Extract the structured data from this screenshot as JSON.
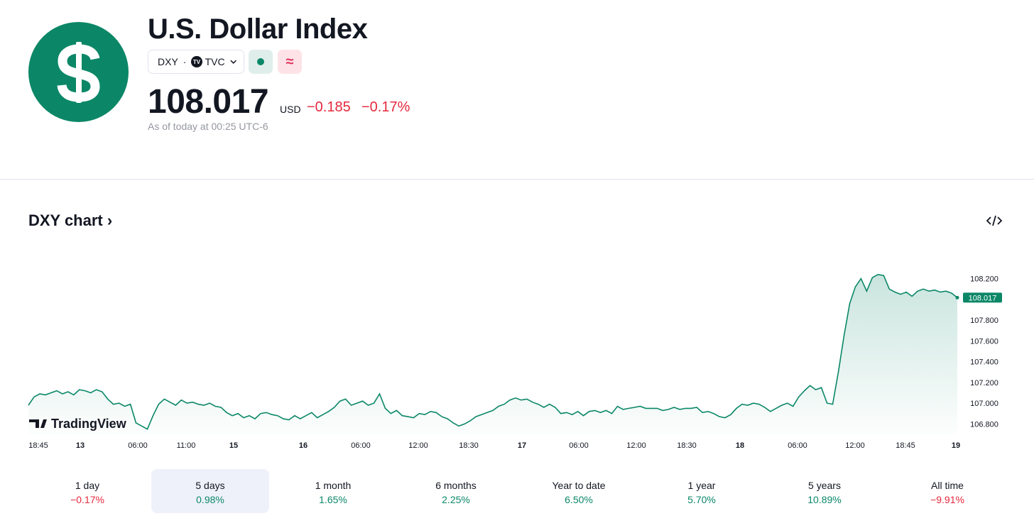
{
  "header": {
    "logo_icon": "dollar-sign-icon",
    "title": "U.S. Dollar Index",
    "symbol": "DXY",
    "separator": "·",
    "exchange_badge": "TV",
    "exchange": "TVC",
    "market_status_icon": "market-open-dot-icon",
    "delayed_icon": "≈",
    "price": "108.017",
    "currency": "USD",
    "change": "−0.185",
    "change_percent": "−0.17%",
    "as_of": "As of today at 00:25 UTC-6"
  },
  "chart_section": {
    "heading": "DXY chart",
    "heading_chevron": "›",
    "embed_icon": "code-embed-icon",
    "watermark": "TradingView"
  },
  "colors": {
    "brand_green": "#0b8767",
    "negative_red": "#e5283c",
    "active_range_bg": "#eef1fa"
  },
  "chart_data": {
    "type": "area",
    "title": "",
    "xlabel": "",
    "ylabel": "",
    "ylim": [
      106.7,
      108.3
    ],
    "y_ticks": [
      "108.200",
      "107.800",
      "107.600",
      "107.400",
      "107.200",
      "107.000",
      "106.800"
    ],
    "x_tick_labels": [
      {
        "label": "18:45",
        "bold": false
      },
      {
        "label": "13",
        "bold": true
      },
      {
        "label": "06:00",
        "bold": false
      },
      {
        "label": "11:00",
        "bold": false
      },
      {
        "label": "15",
        "bold": true
      },
      {
        "label": "16",
        "bold": true
      },
      {
        "label": "06:00",
        "bold": false
      },
      {
        "label": "12:00",
        "bold": false
      },
      {
        "label": "18:30",
        "bold": false
      },
      {
        "label": "17",
        "bold": true
      },
      {
        "label": "06:00",
        "bold": false
      },
      {
        "label": "12:00",
        "bold": false
      },
      {
        "label": "18:30",
        "bold": false
      },
      {
        "label": "18",
        "bold": true
      },
      {
        "label": "06:00",
        "bold": false
      },
      {
        "label": "12:00",
        "bold": false
      },
      {
        "label": "18:45",
        "bold": false
      },
      {
        "label": "19",
        "bold": true
      }
    ],
    "last_value_label": "108.017",
    "grid": false,
    "series": [
      {
        "values": [
          106.98,
          107.06,
          107.09,
          107.08,
          107.1,
          107.12,
          107.09,
          107.11,
          107.08,
          107.13,
          107.12,
          107.1,
          107.13,
          107.11,
          107.04,
          106.99,
          107.0,
          106.97,
          106.99,
          106.81,
          106.78,
          106.75,
          106.88,
          106.99,
          107.04,
          107.01,
          106.98,
          107.03,
          107.0,
          107.01,
          106.99,
          106.98,
          107.0,
          106.97,
          106.96,
          106.91,
          106.88,
          106.9,
          106.86,
          106.88,
          106.85,
          106.9,
          106.91,
          106.89,
          106.88,
          106.85,
          106.84,
          106.88,
          106.85,
          106.88,
          106.91,
          106.86,
          106.89,
          106.92,
          106.96,
          107.02,
          107.04,
          106.98,
          107.0,
          107.02,
          106.98,
          107.0,
          107.09,
          106.95,
          106.9,
          106.93,
          106.88,
          106.87,
          106.86,
          106.9,
          106.89,
          106.92,
          106.91,
          106.87,
          106.85,
          106.81,
          106.78,
          106.8,
          106.83,
          106.87,
          106.89,
          106.91,
          106.93,
          106.97,
          106.99,
          107.03,
          107.05,
          107.03,
          107.04,
          107.01,
          106.99,
          106.96,
          106.99,
          106.96,
          106.9,
          106.91,
          106.89,
          106.92,
          106.88,
          106.92,
          106.93,
          106.91,
          106.93,
          106.9,
          106.97,
          106.94,
          106.95,
          106.96,
          106.97,
          106.95,
          106.95,
          106.95,
          106.93,
          106.94,
          106.96,
          106.94,
          106.95,
          106.95,
          106.96,
          106.91,
          106.92,
          106.9,
          106.87,
          106.86,
          106.89,
          106.95,
          106.99,
          106.98,
          107.0,
          106.99,
          106.96,
          106.92,
          106.95,
          106.98,
          107.0,
          106.97,
          107.06,
          107.12,
          107.17,
          107.13,
          107.15,
          107.0,
          106.99,
          107.3,
          107.65,
          107.96,
          108.12,
          108.2,
          108.08,
          108.21,
          108.24,
          108.23,
          108.1,
          108.07,
          108.05,
          108.07,
          108.03,
          108.08,
          108.1,
          108.08,
          108.09,
          108.07,
          108.08,
          108.06,
          108.017
        ]
      }
    ]
  },
  "ranges": [
    {
      "label": "1 day",
      "value": "−0.17%",
      "sign": "neg",
      "active": false
    },
    {
      "label": "5 days",
      "value": "0.98%",
      "sign": "pos",
      "active": true
    },
    {
      "label": "1 month",
      "value": "1.65%",
      "sign": "pos",
      "active": false
    },
    {
      "label": "6 months",
      "value": "2.25%",
      "sign": "pos",
      "active": false
    },
    {
      "label": "Year to date",
      "value": "6.50%",
      "sign": "pos",
      "active": false
    },
    {
      "label": "1 year",
      "value": "5.70%",
      "sign": "pos",
      "active": false
    },
    {
      "label": "5 years",
      "value": "10.89%",
      "sign": "pos",
      "active": false
    },
    {
      "label": "All time",
      "value": "−9.91%",
      "sign": "neg",
      "active": false
    }
  ]
}
